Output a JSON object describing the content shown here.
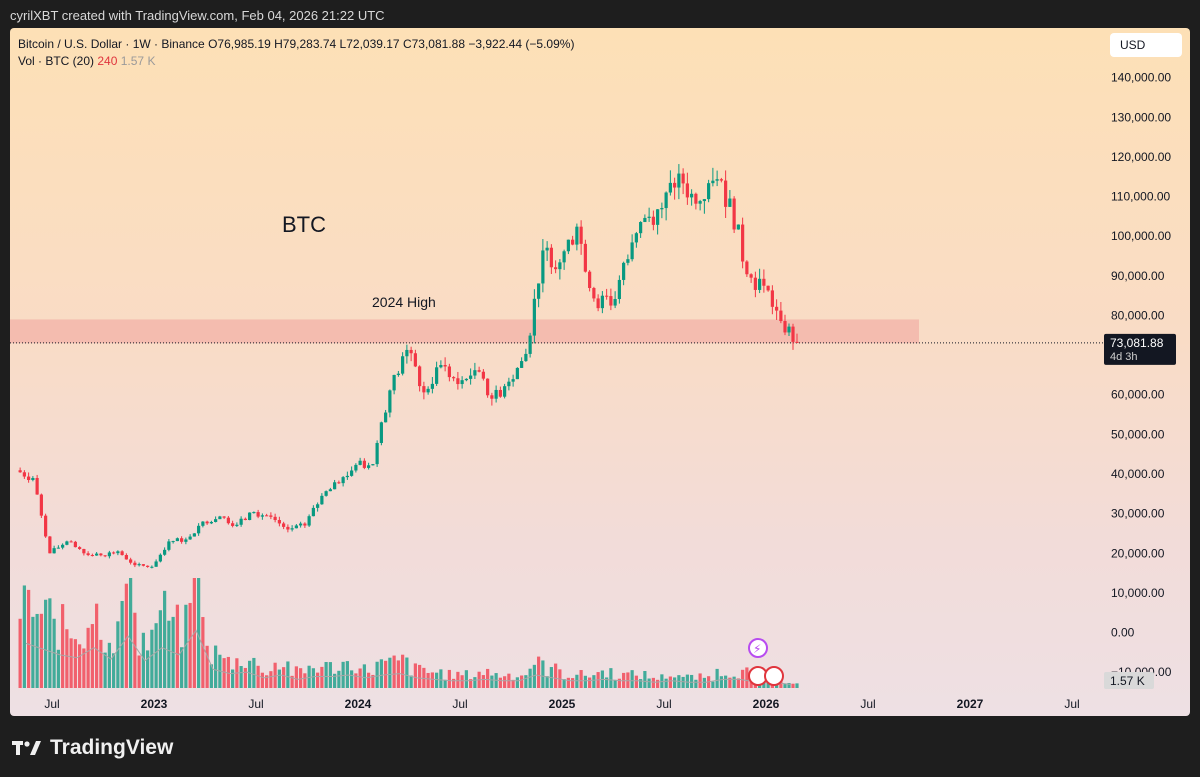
{
  "header": {
    "caption": "cyrilXBT created with TradingView.com, Feb 04, 2026 21:22 UTC"
  },
  "legend": {
    "symbol": "Bitcoin / U.S. Dollar · 1W · Binance",
    "open": "O76,985.19",
    "high": "H79,283.74",
    "low": "L72,039.17",
    "close": "C73,081.88",
    "change": "−3,922.44 (−5.09%)",
    "vol_label": "Vol · BTC (20)",
    "vol_value": "240",
    "vol_ma": "1.57 K"
  },
  "currency_button": "USD",
  "brand_name": "TradingView",
  "colors": {
    "up": "#089981",
    "down": "#f23645",
    "zone": "#f0a6a0"
  },
  "chart_data": {
    "type": "candlestick",
    "title": "BTC",
    "annotations": [
      {
        "text": "BTC",
        "x": "2023-12",
        "y": 110000
      },
      {
        "text": "2024 High",
        "x": "2024-03",
        "y": 82000
      }
    ],
    "zone": {
      "label": "2024 High",
      "y_low": 73000,
      "y_high": 79000,
      "x_start": "2022-05",
      "x_end": "2026-10"
    },
    "last_price": "73,081.88",
    "countdown": "4d 3h",
    "y_axis": {
      "ticks": [
        {
          "value": 140000,
          "label": "140,000.00"
        },
        {
          "value": 130000,
          "label": "130,000.00"
        },
        {
          "value": 120000,
          "label": "120,000.00"
        },
        {
          "value": 110000,
          "label": "110,000.00"
        },
        {
          "value": 100000,
          "label": "100,000.00"
        },
        {
          "value": 90000,
          "label": "90,000.00"
        },
        {
          "value": 80000,
          "label": "80,000.00"
        },
        {
          "value": 60000,
          "label": "60,000.00"
        },
        {
          "value": 50000,
          "label": "50,000.00"
        },
        {
          "value": 40000,
          "label": "40,000.00"
        },
        {
          "value": 30000,
          "label": "30,000.00"
        },
        {
          "value": 20000,
          "label": "20,000.00"
        },
        {
          "value": 10000,
          "label": "10,000.00"
        },
        {
          "value": 0,
          "label": "0.00"
        },
        {
          "value": -10000,
          "label": "−10,000.00"
        }
      ],
      "min": -16000,
      "max": 150000
    },
    "x_axis": {
      "ticks": [
        {
          "date": "2022-07",
          "label": "Jul",
          "bold": false
        },
        {
          "date": "2023-01",
          "label": "2023",
          "bold": true
        },
        {
          "date": "2023-07",
          "label": "Jul",
          "bold": false
        },
        {
          "date": "2024-01",
          "label": "2024",
          "bold": true
        },
        {
          "date": "2024-07",
          "label": "Jul",
          "bold": false
        },
        {
          "date": "2025-01",
          "label": "2025",
          "bold": true
        },
        {
          "date": "2025-07",
          "label": "Jul",
          "bold": false
        },
        {
          "date": "2026-01",
          "label": "2026",
          "bold": true
        },
        {
          "date": "2026-07",
          "label": "Jul",
          "bold": false
        },
        {
          "date": "2027-01",
          "label": "2027",
          "bold": true
        },
        {
          "date": "2027-07",
          "label": "Jul",
          "bold": false
        }
      ]
    },
    "volume_ma_label": "1.57 K",
    "price_series": {
      "x": [
        "2022-05",
        "2022-06",
        "2022-07",
        "2022-08",
        "2022-09",
        "2022-10",
        "2022-11",
        "2022-12",
        "2023-01",
        "2023-02",
        "2023-03",
        "2023-04",
        "2023-05",
        "2023-06",
        "2023-07",
        "2023-08",
        "2023-09",
        "2023-10",
        "2023-11",
        "2023-12",
        "2024-01",
        "2024-02",
        "2024-03",
        "2024-04",
        "2024-05",
        "2024-06",
        "2024-07",
        "2024-08",
        "2024-09",
        "2024-10",
        "2024-11",
        "2024-12",
        "2025-01",
        "2025-02",
        "2025-03",
        "2025-04",
        "2025-05",
        "2025-06",
        "2025-07",
        "2025-08",
        "2025-09",
        "2025-10",
        "2025-11",
        "2025-12",
        "2026-01",
        "2026-02"
      ],
      "close": [
        39000,
        20000,
        23000,
        20000,
        19500,
        20500,
        17000,
        16600,
        23000,
        23500,
        28000,
        29300,
        27200,
        30400,
        29200,
        26000,
        27000,
        34500,
        37700,
        42300,
        42500,
        61100,
        71300,
        60600,
        67500,
        62700,
        66200,
        59000,
        63300,
        70300,
        96400,
        93400,
        102400,
        84300,
        82500,
        94200,
        104600,
        107100,
        115800,
        108200,
        114000,
        109500,
        90400,
        87500,
        78600,
        73081
      ]
    },
    "volume_series": {
      "x": [
        "2022-05",
        "2022-06",
        "2022-07",
        "2022-08",
        "2022-09",
        "2022-10",
        "2022-11",
        "2022-12",
        "2023-01",
        "2023-02",
        "2023-03",
        "2023-04",
        "2023-05",
        "2023-06",
        "2023-07",
        "2023-08",
        "2023-09",
        "2023-10",
        "2023-11",
        "2023-12",
        "2024-01",
        "2024-02",
        "2024-03",
        "2024-04",
        "2024-05",
        "2024-06",
        "2024-07",
        "2024-08",
        "2024-09",
        "2024-10",
        "2024-11",
        "2024-12",
        "2025-01",
        "2025-02",
        "2025-03",
        "2025-04",
        "2025-05",
        "2025-06",
        "2025-07",
        "2025-08",
        "2025-09",
        "2025-10",
        "2025-11",
        "2025-12",
        "2026-01",
        "2026-02"
      ],
      "values": [
        3100,
        2700,
        2300,
        2100,
        2800,
        2000,
        3600,
        1900,
        2800,
        2300,
        4000,
        1300,
        1000,
        1100,
        700,
        900,
        600,
        800,
        800,
        900,
        700,
        900,
        1000,
        700,
        600,
        500,
        500,
        600,
        500,
        500,
        900,
        700,
        500,
        500,
        600,
        500,
        500,
        400,
        500,
        400,
        400,
        600,
        600,
        400,
        400,
        240
      ]
    }
  }
}
